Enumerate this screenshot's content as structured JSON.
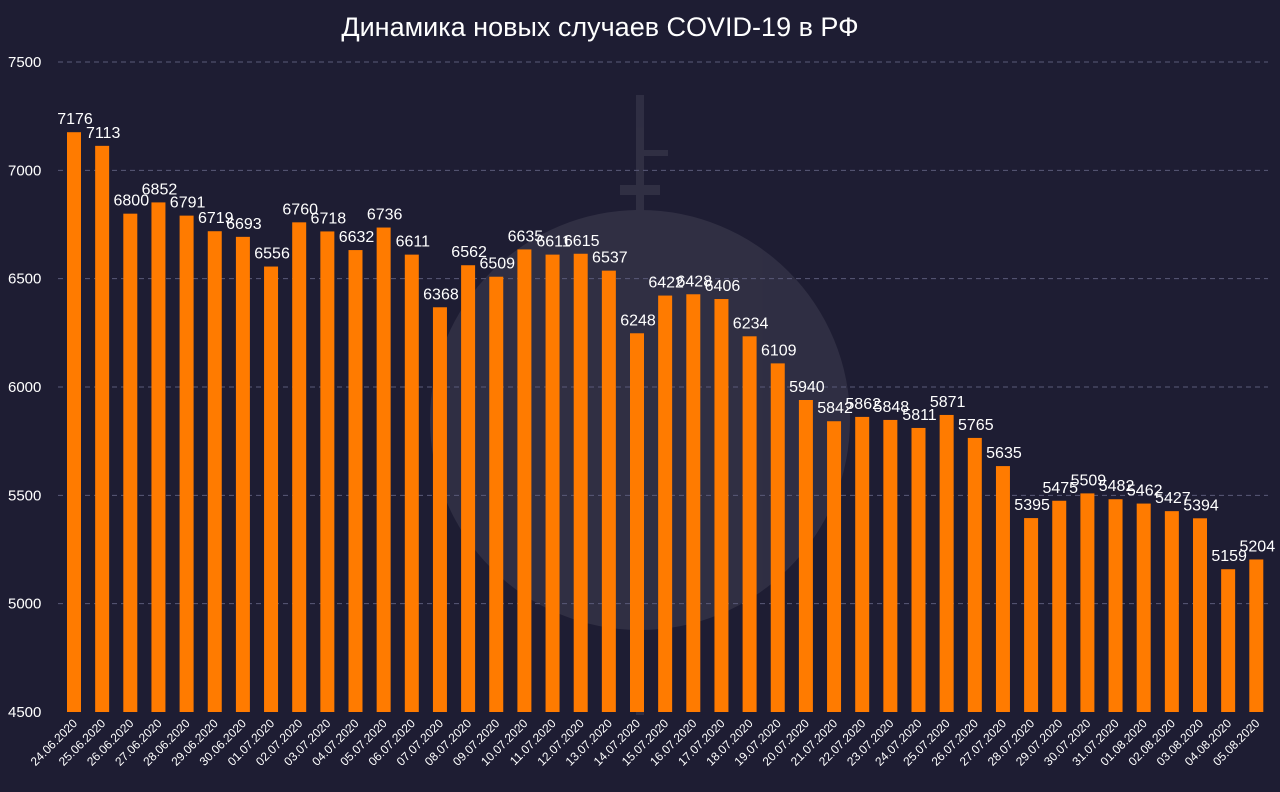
{
  "chart_data": {
    "type": "bar",
    "title": "Динамика новых случаев COVID-19 в РФ",
    "xlabel": "",
    "ylabel": "",
    "ylim": [
      4500,
      7500
    ],
    "yticks": [
      "4500",
      "5000",
      "5500",
      "6000",
      "6500",
      "7000",
      "7500"
    ],
    "grid": true,
    "bar_color": "#ff7b00",
    "categories": [
      "24.06.2020",
      "25.06.2020",
      "26.06.2020",
      "27.06.2020",
      "28.06.2020",
      "29.06.2020",
      "30.06.2020",
      "01.07.2020",
      "02.07.2020",
      "03.07.2020",
      "04.07.2020",
      "05.07.2020",
      "06.07.2020",
      "07.07.2020",
      "08.07.2020",
      "09.07.2020",
      "10.07.2020",
      "11.07.2020",
      "12.07.2020",
      "13.07.2020",
      "14.07.2020",
      "15.07.2020",
      "16.07.2020",
      "17.07.2020",
      "18.07.2020",
      "19.07.2020",
      "20.07.2020",
      "21.07.2020",
      "22.07.2020",
      "23.07.2020",
      "24.07.2020",
      "25.07.2020",
      "26.07.2020",
      "27.07.2020",
      "28.07.2020",
      "29.07.2020",
      "30.07.2020",
      "31.07.2020",
      "01.08.2020",
      "02.08.2020",
      "03.08.2020",
      "04.08.2020",
      "05.08.2020"
    ],
    "values": [
      7176,
      7113,
      6800,
      6852,
      6791,
      6719,
      6693,
      6556,
      6760,
      6718,
      6632,
      6736,
      6611,
      6368,
      6562,
      6509,
      6635,
      6611,
      6615,
      6537,
      6248,
      6422,
      6428,
      6406,
      6234,
      6109,
      5940,
      5842,
      5862,
      5848,
      5811,
      5871,
      5765,
      5635,
      5395,
      5475,
      5509,
      5482,
      5462,
      5427,
      5394,
      5159,
      5204
    ]
  }
}
